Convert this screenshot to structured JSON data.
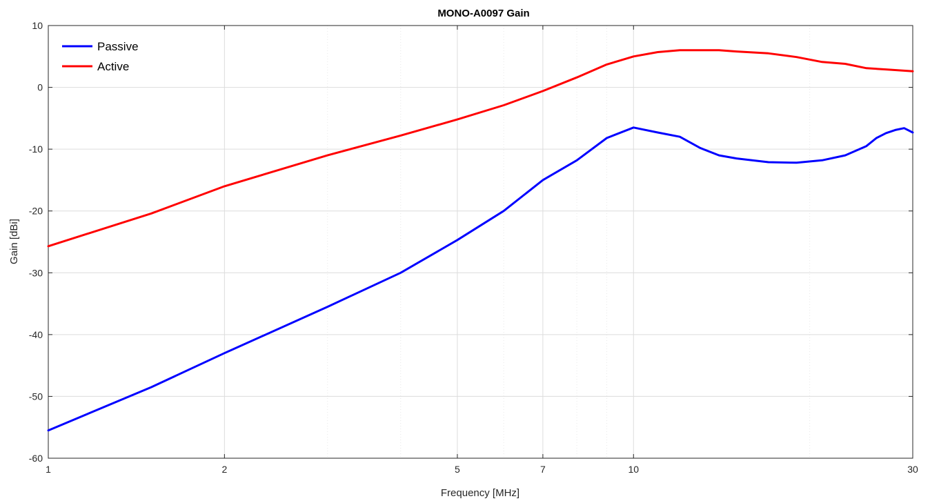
{
  "chart_data": {
    "type": "line",
    "title": "MONO-A0097 Gain",
    "xlabel": "Frequency [MHz]",
    "ylabel": "Gain [dBi]",
    "xscale": "log",
    "xlim": [
      1,
      30
    ],
    "ylim": [
      -60,
      10
    ],
    "xticks": [
      1,
      2,
      5,
      7,
      10,
      30
    ],
    "xtick_labels": [
      "1",
      "2",
      "5",
      "7",
      "10",
      "30"
    ],
    "yticks": [
      10,
      0,
      -10,
      -20,
      -30,
      -40,
      -50,
      -60
    ],
    "ytick_labels": [
      "10",
      "0",
      "-10",
      "-20",
      "-30",
      "-40",
      "-50",
      "-60"
    ],
    "grid": true,
    "legend_position": "top-left",
    "series": [
      {
        "name": "Passive",
        "color": "#0000ff",
        "x": [
          1,
          1.5,
          2,
          3,
          4,
          5,
          6,
          7,
          8,
          9,
          10,
          11,
          12,
          13,
          14,
          15,
          17,
          19,
          21,
          23,
          25,
          26,
          27,
          28,
          29,
          30
        ],
        "y": [
          -55.5,
          -48.5,
          -43,
          -35.5,
          -30,
          -24.7,
          -20,
          -15,
          -11.8,
          -8.2,
          -6.5,
          -7.3,
          -8.0,
          -9.8,
          -11.0,
          -11.5,
          -12.1,
          -12.2,
          -11.8,
          -11.0,
          -9.5,
          -8.2,
          -7.4,
          -6.9,
          -6.6,
          -7.3
        ]
      },
      {
        "name": "Active",
        "color": "#ff0000",
        "x": [
          1,
          1.5,
          2,
          3,
          4,
          5,
          6,
          7,
          8,
          9,
          10,
          11,
          12,
          13,
          14,
          15,
          17,
          19,
          21,
          23,
          25,
          27,
          30
        ],
        "y": [
          -25.7,
          -20.4,
          -16,
          -11,
          -7.8,
          -5.2,
          -2.9,
          -0.6,
          1.6,
          3.7,
          5.0,
          5.7,
          6.0,
          6.0,
          6.0,
          5.8,
          5.5,
          4.9,
          4.1,
          3.8,
          3.1,
          2.9,
          2.6
        ]
      }
    ]
  }
}
